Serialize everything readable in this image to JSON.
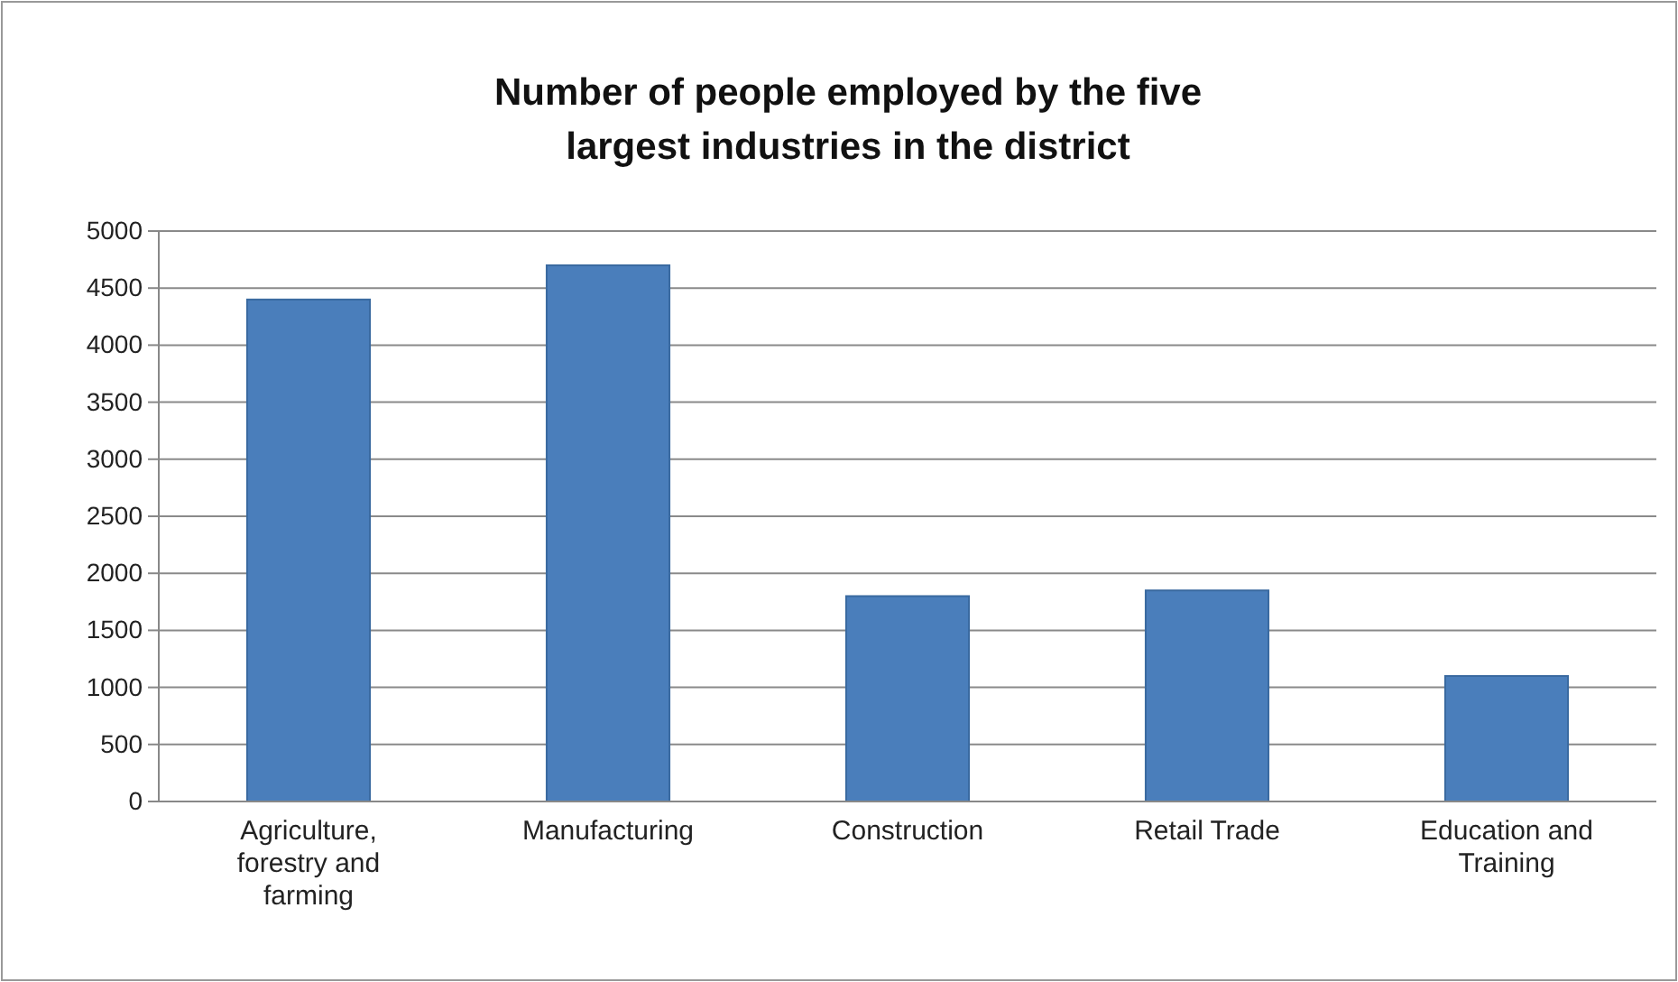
{
  "chart_data": {
    "type": "bar",
    "title": "Number of people employed by the five largest industries in the district",
    "categories": [
      "Agriculture, forestry and farming",
      "Manufacturing",
      "Construction",
      "Retail Trade",
      "Education and Training"
    ],
    "values": [
      4400,
      4700,
      1800,
      1850,
      1100
    ],
    "color": "#4a7ebb",
    "ylim": [
      0,
      5000
    ],
    "yticks": [
      0,
      500,
      1000,
      1500,
      2000,
      2500,
      3000,
      3500,
      4000,
      4500,
      5000
    ],
    "grid": "y"
  }
}
